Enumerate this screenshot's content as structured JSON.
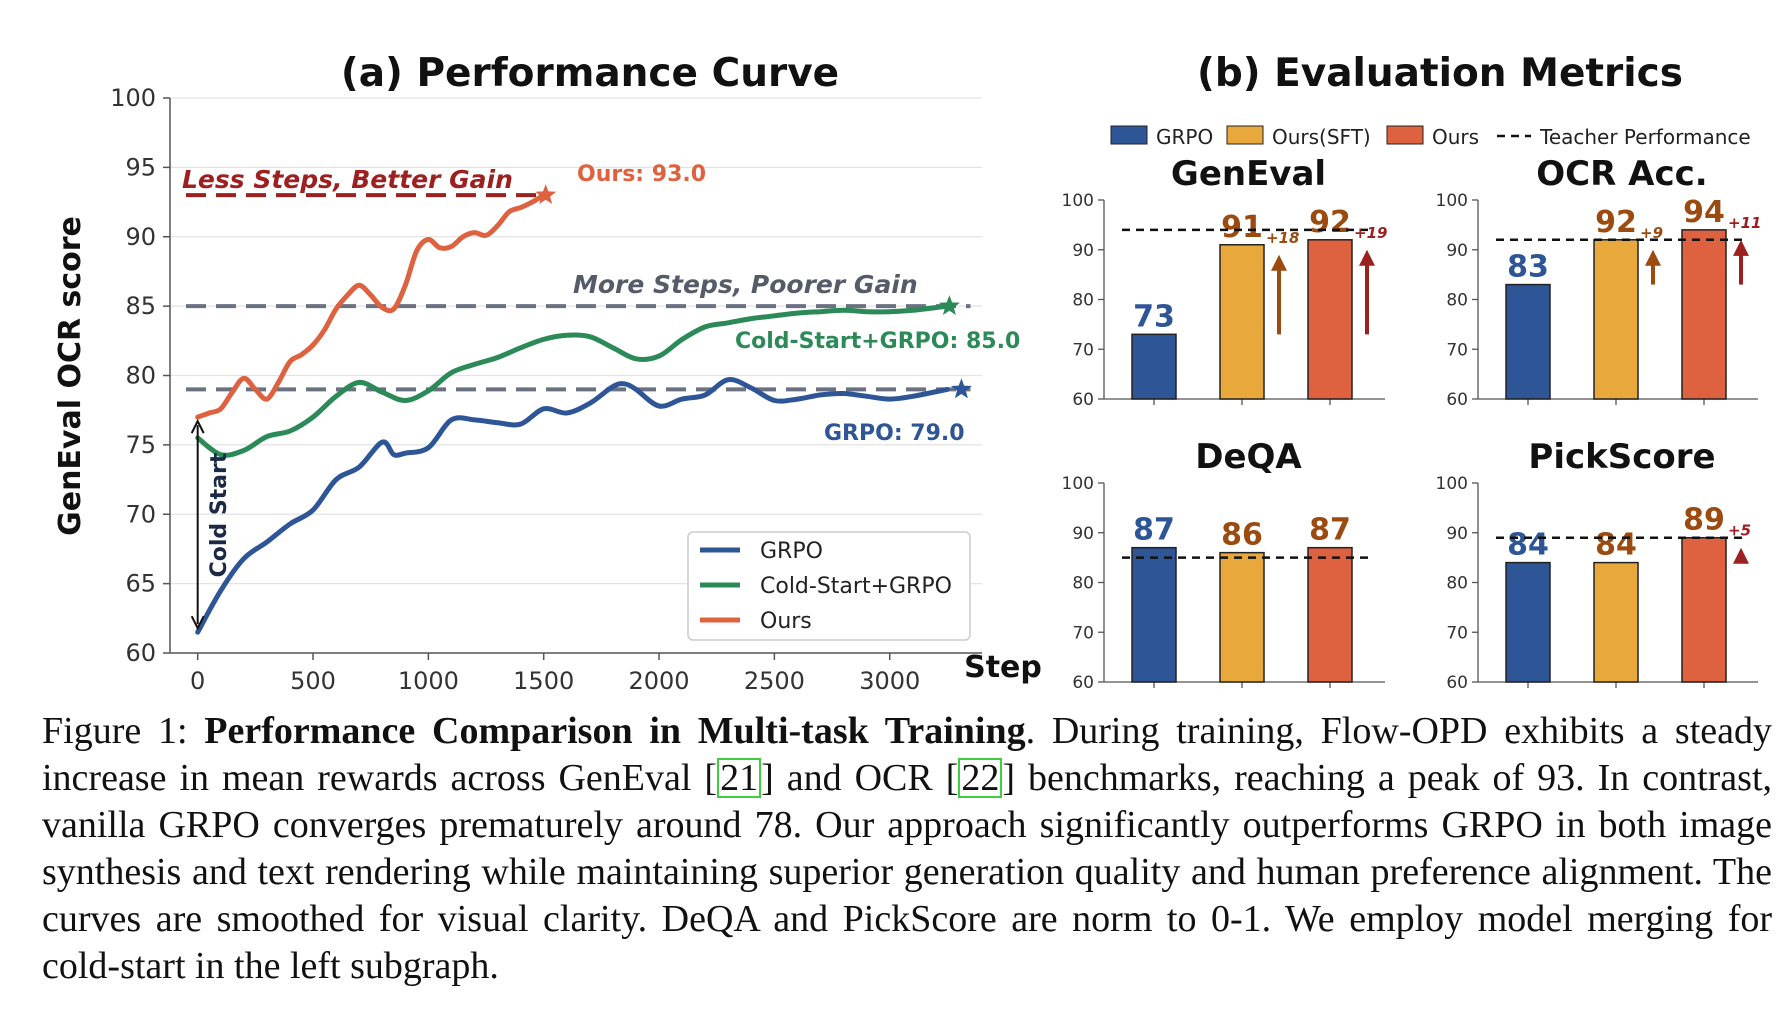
{
  "colors": {
    "grpo": "#2e5596",
    "cold_start": "#2b8a57",
    "ours": "#de6240",
    "ours_sft": "#e9a83c",
    "dashed": "#6a7180",
    "dark_red": "#9c2020",
    "brown": "#9b4a10"
  },
  "left_panel": {
    "title": "(a) Performance Curve",
    "ylabel": "GenEval OCR score",
    "xlabel": "Step",
    "annotations": {
      "less_steps": "Less Steps, Better Gain",
      "more_steps": "More Steps, Poorer Gain",
      "ours_final": "Ours: 93.0",
      "cold_final": "Cold-Start+GRPO: 85.0",
      "grpo_final": "GRPO: 79.0",
      "cold_start_arrow": "Cold Start"
    },
    "legend": [
      "GRPO",
      "Cold-Start+GRPO",
      "Ours"
    ]
  },
  "chart_data": [
    {
      "type": "line",
      "title": "(a) Performance Curve",
      "xlabel": "Step",
      "ylabel": "GenEval OCR score",
      "xlim": [
        -120,
        3400
      ],
      "ylim": [
        60,
        100
      ],
      "xticks": [
        0,
        500,
        1000,
        1500,
        2000,
        2500,
        3000
      ],
      "yticks": [
        60,
        65,
        70,
        75,
        80,
        85,
        90,
        95,
        100
      ],
      "grid": "horizontal",
      "legend_position": "bottom-right",
      "reference_lines": [
        93,
        85,
        79
      ],
      "series": [
        {
          "name": "GRPO",
          "x": [
            0,
            100,
            200,
            300,
            400,
            500,
            600,
            700,
            800,
            850,
            900,
            1000,
            1100,
            1200,
            1300,
            1400,
            1500,
            1600,
            1700,
            1800,
            1850,
            1900,
            2000,
            2100,
            2200,
            2300,
            2400,
            2500,
            2600,
            2700,
            2800,
            2900,
            3000,
            3100,
            3250
          ],
          "y": [
            61.5,
            64.5,
            66.8,
            68.0,
            69.3,
            70.3,
            72.5,
            73.4,
            75.2,
            74.3,
            74.4,
            74.8,
            76.8,
            76.8,
            76.6,
            76.5,
            77.6,
            77.3,
            78.0,
            79.2,
            79.4,
            79.0,
            77.8,
            78.3,
            78.6,
            79.7,
            79.1,
            78.2,
            78.3,
            78.6,
            78.7,
            78.5,
            78.3,
            78.5,
            79.0
          ]
        },
        {
          "name": "Cold-Start+GRPO",
          "x": [
            0,
            100,
            200,
            300,
            400,
            500,
            600,
            700,
            800,
            900,
            1000,
            1100,
            1200,
            1300,
            1400,
            1500,
            1600,
            1700,
            1800,
            1900,
            2000,
            2100,
            2200,
            2300,
            2400,
            2500,
            2600,
            2700,
            2800,
            2900,
            3000,
            3100,
            3250
          ],
          "y": [
            75.5,
            74.3,
            74.6,
            75.6,
            76.0,
            77.0,
            78.5,
            79.5,
            78.8,
            78.2,
            78.9,
            80.2,
            80.8,
            81.3,
            82.0,
            82.6,
            82.9,
            82.8,
            82.0,
            81.2,
            81.4,
            82.6,
            83.5,
            83.8,
            84.1,
            84.3,
            84.5,
            84.6,
            84.7,
            84.6,
            84.6,
            84.7,
            85.0
          ]
        },
        {
          "name": "Ours",
          "x": [
            0,
            50,
            100,
            150,
            200,
            250,
            300,
            350,
            400,
            450,
            500,
            550,
            600,
            650,
            700,
            750,
            800,
            850,
            900,
            950,
            1000,
            1050,
            1100,
            1150,
            1200,
            1250,
            1300,
            1350,
            1400,
            1450,
            1500
          ],
          "y": [
            77.0,
            77.3,
            77.6,
            78.8,
            79.8,
            79.0,
            78.3,
            79.5,
            81.0,
            81.5,
            82.2,
            83.3,
            84.8,
            85.8,
            86.5,
            85.8,
            84.9,
            84.8,
            86.5,
            89.0,
            89.8,
            89.2,
            89.3,
            90.0,
            90.3,
            90.1,
            90.8,
            91.8,
            92.1,
            92.5,
            93.0
          ]
        }
      ]
    },
    {
      "type": "bar",
      "title": "GenEval",
      "categories": [
        "GRPO",
        "Ours(SFT)",
        "Ours"
      ],
      "values": [
        73,
        91,
        92
      ],
      "ylim": [
        60,
        100
      ],
      "yticks": [
        60,
        70,
        80,
        90,
        100
      ],
      "teacher_performance": 94,
      "deltas": [
        "+18",
        "+19"
      ]
    },
    {
      "type": "bar",
      "title": "OCR Acc.",
      "categories": [
        "GRPO",
        "Ours(SFT)",
        "Ours"
      ],
      "values": [
        83,
        92,
        94
      ],
      "ylim": [
        60,
        100
      ],
      "yticks": [
        60,
        70,
        80,
        90,
        100
      ],
      "teacher_performance": 92,
      "deltas": [
        "+9",
        "+11"
      ]
    },
    {
      "type": "bar",
      "title": "DeQA",
      "categories": [
        "GRPO",
        "Ours(SFT)",
        "Ours"
      ],
      "values": [
        87,
        86,
        87
      ],
      "ylim": [
        60,
        100
      ],
      "yticks": [
        60,
        70,
        80,
        90,
        100
      ],
      "teacher_performance": 85,
      "deltas": []
    },
    {
      "type": "bar",
      "title": "PickScore",
      "categories": [
        "GRPO",
        "Ours(SFT)",
        "Ours"
      ],
      "values": [
        84,
        84,
        89
      ],
      "ylim": [
        60,
        100
      ],
      "yticks": [
        60,
        70,
        80,
        90,
        100
      ],
      "teacher_performance": 89,
      "deltas": [
        "",
        "+5"
      ]
    }
  ],
  "right_panel": {
    "title": "(b) Evaluation Metrics",
    "legend": [
      "GRPO",
      "Ours(SFT)",
      "Ours",
      "Teacher Performance"
    ]
  },
  "caption": {
    "label": "Figure 1: ",
    "bold": "Performance Comparison in Multi-task Training",
    "text1": ". During training, Flow-OPD exhibits a steady increase in mean rewards across GenEval [",
    "ref1": "21",
    "text2": "] and OCR [",
    "ref2": "22",
    "text3": "] benchmarks, reaching a peak of 93. In contrast, vanilla GRPO converges prematurely around 78. Our approach significantly outperforms GRPO in both image synthesis and text rendering while maintaining superior generation quality and human preference alignment. The curves are smoothed for visual clarity. DeQA and PickScore are norm to 0-1. We employ model merging for cold-start in the left subgraph."
  }
}
